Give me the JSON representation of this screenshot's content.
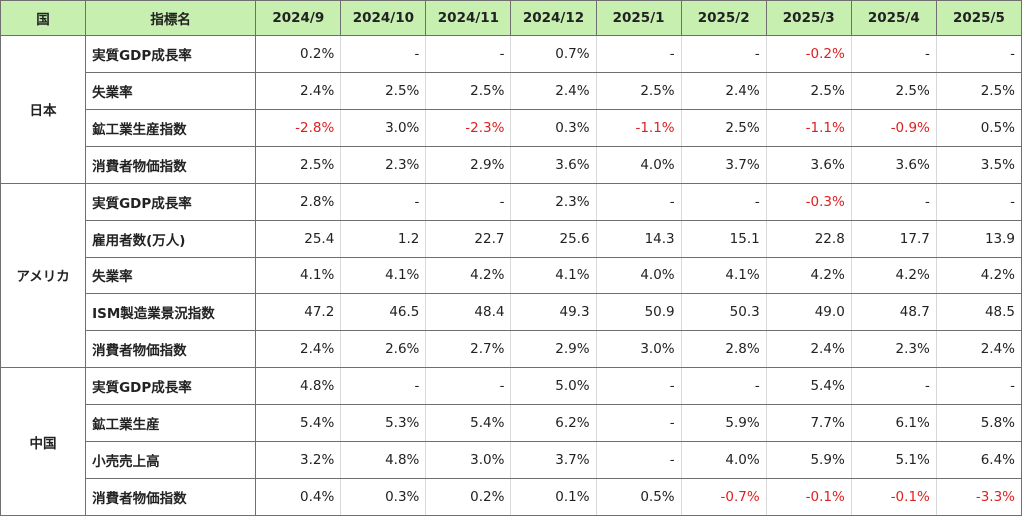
{
  "header": {
    "country": "国",
    "indicator": "指標名",
    "months": [
      "2024/9",
      "2024/10",
      "2024/11",
      "2024/12",
      "2025/1",
      "2025/2",
      "2025/3",
      "2025/4",
      "2025/5"
    ]
  },
  "colors": {
    "negative": "#e02020",
    "header_bg": "#c6efb0"
  },
  "groups": [
    {
      "country": "日本",
      "rows": [
        {
          "indicator": "実質GDP成長率",
          "values": [
            "0.2%",
            "-",
            "-",
            "0.7%",
            "-",
            "-",
            "-0.2%",
            "-",
            "-"
          ]
        },
        {
          "indicator": "失業率",
          "values": [
            "2.4%",
            "2.5%",
            "2.5%",
            "2.4%",
            "2.5%",
            "2.4%",
            "2.5%",
            "2.5%",
            "2.5%"
          ]
        },
        {
          "indicator": "鉱工業生産指数",
          "values": [
            "-2.8%",
            "3.0%",
            "-2.3%",
            "0.3%",
            "-1.1%",
            "2.5%",
            "-1.1%",
            "-0.9%",
            "0.5%"
          ]
        },
        {
          "indicator": "消費者物価指数",
          "values": [
            "2.5%",
            "2.3%",
            "2.9%",
            "3.6%",
            "4.0%",
            "3.7%",
            "3.6%",
            "3.6%",
            "3.5%"
          ]
        }
      ]
    },
    {
      "country": "アメリカ",
      "rows": [
        {
          "indicator": "実質GDP成長率",
          "values": [
            "2.8%",
            "-",
            "-",
            "2.3%",
            "-",
            "-",
            "-0.3%",
            "-",
            "-"
          ]
        },
        {
          "indicator": "雇用者数(万人)",
          "values": [
            "25.4",
            "1.2",
            "22.7",
            "25.6",
            "14.3",
            "15.1",
            "22.8",
            "17.7",
            "13.9"
          ]
        },
        {
          "indicator": "失業率",
          "values": [
            "4.1%",
            "4.1%",
            "4.2%",
            "4.1%",
            "4.0%",
            "4.1%",
            "4.2%",
            "4.2%",
            "4.2%"
          ]
        },
        {
          "indicator": "ISM製造業景況指数",
          "values": [
            "47.2",
            "46.5",
            "48.4",
            "49.3",
            "50.9",
            "50.3",
            "49.0",
            "48.7",
            "48.5"
          ]
        },
        {
          "indicator": "消費者物価指数",
          "values": [
            "2.4%",
            "2.6%",
            "2.7%",
            "2.9%",
            "3.0%",
            "2.8%",
            "2.4%",
            "2.3%",
            "2.4%"
          ]
        }
      ]
    },
    {
      "country": "中国",
      "rows": [
        {
          "indicator": "実質GDP成長率",
          "values": [
            "4.8%",
            "-",
            "-",
            "5.0%",
            "-",
            "-",
            "5.4%",
            "-",
            "-"
          ]
        },
        {
          "indicator": "鉱工業生産",
          "values": [
            "5.4%",
            "5.3%",
            "5.4%",
            "6.2%",
            "-",
            "5.9%",
            "7.7%",
            "6.1%",
            "5.8%"
          ]
        },
        {
          "indicator": "小売売上高",
          "values": [
            "3.2%",
            "4.8%",
            "3.0%",
            "3.7%",
            "-",
            "4.0%",
            "5.9%",
            "5.1%",
            "6.4%"
          ]
        },
        {
          "indicator": "消費者物価指数",
          "values": [
            "0.4%",
            "0.3%",
            "0.2%",
            "0.1%",
            "0.5%",
            "-0.7%",
            "-0.1%",
            "-0.1%",
            "-3.3%"
          ]
        }
      ]
    }
  ]
}
